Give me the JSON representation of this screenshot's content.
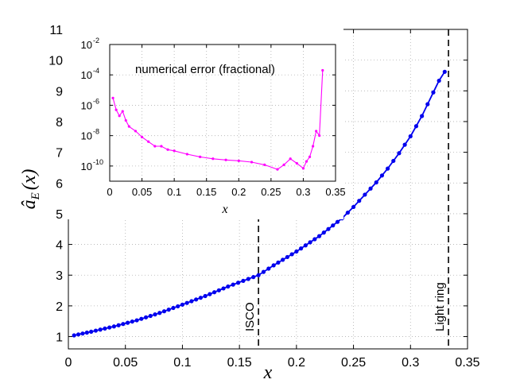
{
  "chart_data": [
    {
      "type": "line",
      "role": "main",
      "xlabel": "x",
      "ylabel_base": "â",
      "ylabel_sub": "E",
      "ylabel_tail": "(x)",
      "xlim": [
        0,
        0.35
      ],
      "ylim": [
        0.6,
        11
      ],
      "xticks": [
        0,
        0.05,
        0.1,
        0.15,
        0.2,
        0.25,
        0.3,
        0.35
      ],
      "xtick_labels": [
        "0",
        "0.05",
        "0.1",
        "0.15",
        "0.2",
        "0.25",
        "0.3",
        "0.35"
      ],
      "yticks": [
        1,
        2,
        3,
        4,
        5,
        6,
        7,
        8,
        9,
        10,
        11
      ],
      "ytick_labels": [
        "1",
        "2",
        "3",
        "4",
        "5",
        "6",
        "7",
        "8",
        "9",
        "10",
        "11"
      ],
      "grid": true,
      "series": [
        {
          "color": "#0000ee",
          "marker": "dot",
          "x": [
            0.005,
            0.02,
            0.04,
            0.06,
            0.08,
            0.1,
            0.12,
            0.14,
            0.1667,
            0.18,
            0.2,
            0.22,
            0.24,
            0.25,
            0.26,
            0.27,
            0.28,
            0.29,
            0.3,
            0.31,
            0.32,
            0.325,
            0.33
          ],
          "y": [
            1.04,
            1.16,
            1.33,
            1.53,
            1.77,
            2.04,
            2.32,
            2.63,
            3.0,
            3.32,
            3.77,
            4.27,
            4.85,
            5.22,
            5.62,
            6.02,
            6.47,
            6.97,
            7.52,
            8.18,
            8.95,
            9.33,
            9.62
          ]
        }
      ],
      "vlines": [
        {
          "x": 0.1667,
          "label": "ISCO"
        },
        {
          "x": 0.3333,
          "label": "Light ring"
        }
      ]
    },
    {
      "type": "line",
      "role": "inset",
      "title": "numerical error (fractional)",
      "xlabel": "x",
      "xlim": [
        0,
        0.35
      ],
      "xticks": [
        0,
        0.05,
        0.1,
        0.15,
        0.2,
        0.25,
        0.3,
        0.35
      ],
      "xtick_labels": [
        "0",
        "0.05",
        "0.1",
        "0.15",
        "0.2",
        "0.25",
        "0.3",
        "0.35"
      ],
      "y_scale": "log",
      "ylim": [
        1e-11,
        0.01
      ],
      "yticks": [
        1e-10,
        1e-08,
        1e-06,
        0.0001,
        0.01
      ],
      "ytick_labels": [
        "10",
        "10",
        "10",
        "10",
        "10"
      ],
      "ytick_exponents": [
        "-10",
        "-8",
        "-6",
        "-4",
        "-2"
      ],
      "grid": true,
      "series": [
        {
          "color": "#ff00ff",
          "marker": "dot",
          "x": [
            0.005,
            0.01,
            0.015,
            0.02,
            0.025,
            0.03,
            0.04,
            0.05,
            0.06,
            0.07,
            0.08,
            0.09,
            0.1,
            0.12,
            0.14,
            0.16,
            0.18,
            0.2,
            0.22,
            0.24,
            0.26,
            0.27,
            0.28,
            0.29,
            0.3,
            0.305,
            0.31,
            0.315,
            0.32,
            0.325,
            0.33
          ],
          "y": [
            3e-06,
            5e-07,
            2e-07,
            4e-07,
            1e-07,
            4e-08,
            2e-08,
            8e-09,
            4e-09,
            2e-09,
            2e-09,
            1.2e-09,
            1e-09,
            6e-10,
            4e-10,
            3e-10,
            2.5e-10,
            2.2e-10,
            1.8e-10,
            1.2e-10,
            6e-11,
            1.2e-10,
            3e-10,
            1.5e-10,
            7e-11,
            2e-10,
            4e-10,
            2e-09,
            2e-08,
            1e-08,
            0.0002
          ]
        }
      ]
    }
  ]
}
